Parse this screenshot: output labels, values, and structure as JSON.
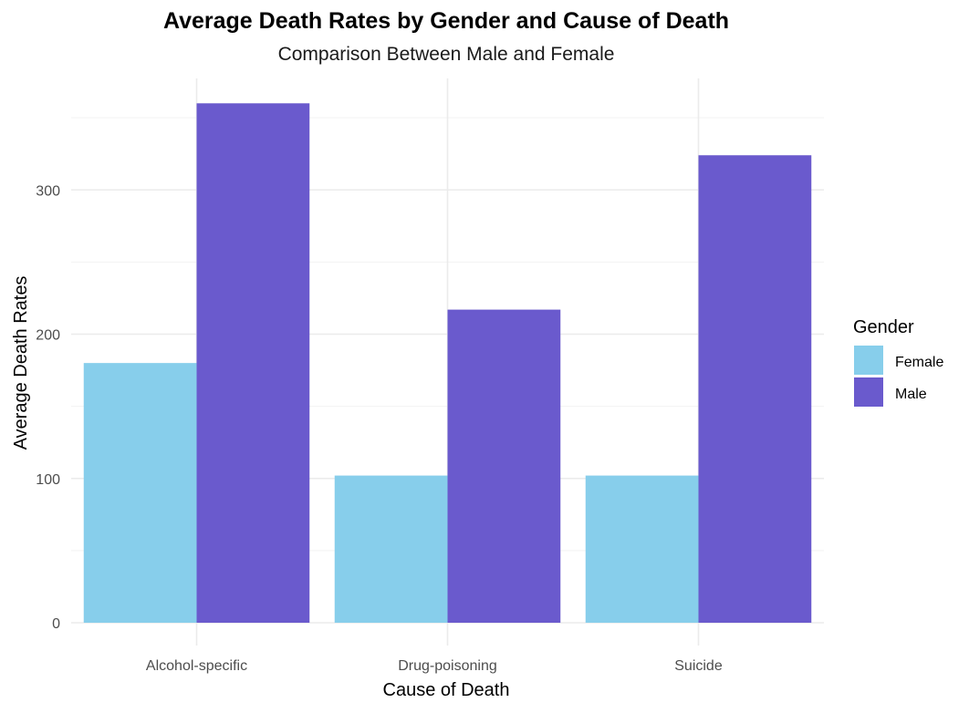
{
  "chart_data": {
    "type": "bar",
    "title": "Average Death Rates by Gender and Cause of Death",
    "subtitle": "Comparison Between Male and Female",
    "xlabel": "Cause of Death",
    "ylabel": "Average Death Rates",
    "categories": [
      "Alcohol-specific",
      "Drug-poisoning",
      "Suicide"
    ],
    "series": [
      {
        "name": "Female",
        "color": "#87CEEB",
        "values": [
          180,
          102,
          102
        ]
      },
      {
        "name": "Male",
        "color": "#6A5ACD",
        "values": [
          360,
          217,
          324
        ]
      }
    ],
    "ylim": [
      0,
      375
    ],
    "yticks": [
      0,
      100,
      200,
      300
    ],
    "grid": true,
    "legend": {
      "title": "Gender",
      "position": "right"
    }
  }
}
